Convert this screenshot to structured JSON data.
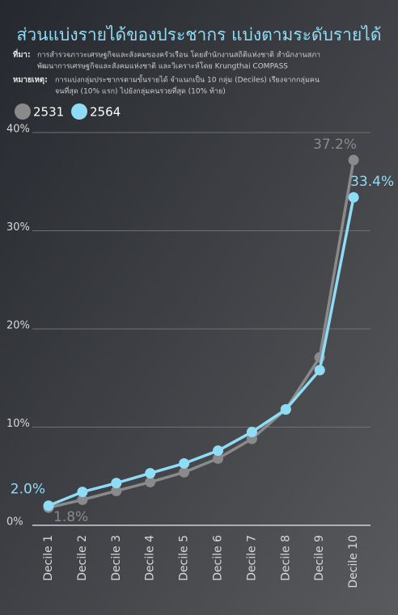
{
  "chart_data": {
    "type": "line",
    "title": "ส่วนแบ่งรายได้ของประชากร แบ่งตามระดับรายได้",
    "source_label": "ที่มา:",
    "source_lines": [
      "การสำรวจภาวะเศรษฐกิจและสังคมของครัวเรือน โดยสำนักงานสถิติแห่งชาติ สำนักงานสภา",
      "พัฒนาการเศรษฐกิจและสังคมแห่งชาติ และวิเคราะห์โดย Krungthai COMPASS"
    ],
    "note_label": "หมายเหตุ:",
    "note_lines": [
      "การแบ่งกลุ่มประชากรตามขั้นรายได้ จำแนกเป็น 10 กลุ่ม (Deciles) เรียงจากกลุ่มคน",
      "จนที่สุด (10% แรก) ไปยังกลุ่มคนรวยที่สุด (10% ท้าย)"
    ],
    "categories": [
      "Decile 1",
      "Decile 2",
      "Decile 3",
      "Decile 4",
      "Decile 5",
      "Decile 6",
      "Decile 7",
      "Decile 8",
      "Decile 9",
      "Decile 10"
    ],
    "series": [
      {
        "name": "2531",
        "color": "#8a8a8a",
        "values": [
          1.8,
          2.6,
          3.5,
          4.4,
          5.4,
          6.8,
          8.8,
          11.8,
          17.1,
          37.2
        ],
        "value_labels": [
          "1.8%",
          null,
          null,
          null,
          null,
          null,
          null,
          null,
          null,
          "37.2%"
        ]
      },
      {
        "name": "2564",
        "color": "#8fdcf7",
        "values": [
          2.0,
          3.4,
          4.3,
          5.3,
          6.3,
          7.6,
          9.5,
          11.8,
          15.8,
          33.4
        ],
        "value_labels": [
          "2.0%",
          null,
          null,
          null,
          null,
          null,
          null,
          null,
          null,
          "33.4%"
        ]
      }
    ],
    "ylim": [
      0,
      40
    ],
    "yticks": [
      {
        "value": 0,
        "label": "0%"
      },
      {
        "value": 10,
        "label": "10%"
      },
      {
        "value": 20,
        "label": "20%"
      },
      {
        "value": 30,
        "label": "30%"
      },
      {
        "value": 40,
        "label": "40%"
      }
    ],
    "grid": true
  }
}
